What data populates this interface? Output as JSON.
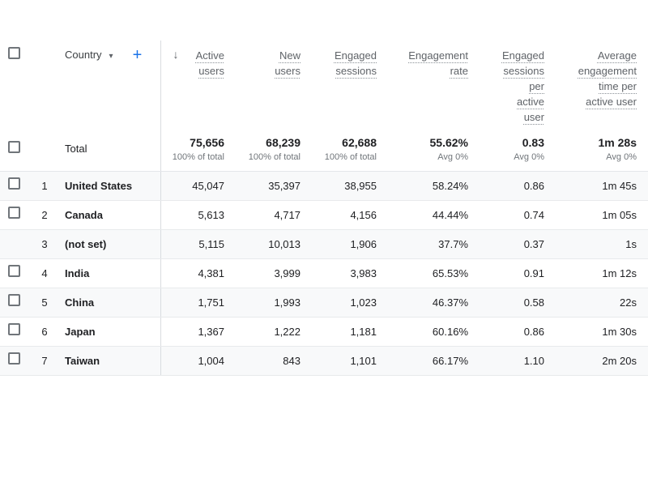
{
  "header": {
    "dimension": {
      "label": "Country"
    },
    "columns": [
      {
        "label": "Active users"
      },
      {
        "label": "New users"
      },
      {
        "label": "Engaged sessions"
      },
      {
        "label": "Engagement rate"
      },
      {
        "label": "Engaged sessions per active user"
      },
      {
        "label": "Average engagement time per active user"
      }
    ]
  },
  "icons": {
    "sort_descending": "↓",
    "dropdown_caret": "▾",
    "add": "+"
  },
  "totals": {
    "label": "Total",
    "metrics": [
      {
        "value": "75,656",
        "sub": "100% of total"
      },
      {
        "value": "68,239",
        "sub": "100% of total"
      },
      {
        "value": "62,688",
        "sub": "100% of total"
      },
      {
        "value": "55.62%",
        "sub": "Avg 0%"
      },
      {
        "value": "0.83",
        "sub": "Avg 0%"
      },
      {
        "value": "1m 28s",
        "sub": "Avg 0%"
      }
    ]
  },
  "rows": [
    {
      "rank": "1",
      "country": "United States",
      "has_checkbox": true,
      "values": [
        "45,047",
        "35,397",
        "38,955",
        "58.24%",
        "0.86",
        "1m 45s"
      ]
    },
    {
      "rank": "2",
      "country": "Canada",
      "has_checkbox": true,
      "values": [
        "5,613",
        "4,717",
        "4,156",
        "44.44%",
        "0.74",
        "1m 05s"
      ]
    },
    {
      "rank": "3",
      "country": "(not set)",
      "has_checkbox": false,
      "values": [
        "5,115",
        "10,013",
        "1,906",
        "37.7%",
        "0.37",
        "1s"
      ]
    },
    {
      "rank": "4",
      "country": "India",
      "has_checkbox": true,
      "values": [
        "4,381",
        "3,999",
        "3,983",
        "65.53%",
        "0.91",
        "1m 12s"
      ]
    },
    {
      "rank": "5",
      "country": "China",
      "has_checkbox": true,
      "values": [
        "1,751",
        "1,993",
        "1,023",
        "46.37%",
        "0.58",
        "22s"
      ]
    },
    {
      "rank": "6",
      "country": "Japan",
      "has_checkbox": true,
      "values": [
        "1,367",
        "1,222",
        "1,181",
        "60.16%",
        "0.86",
        "1m 30s"
      ]
    },
    {
      "rank": "7",
      "country": "Taiwan",
      "has_checkbox": true,
      "values": [
        "1,004",
        "843",
        "1,101",
        "66.17%",
        "1.10",
        "2m 20s"
      ]
    }
  ],
  "colors": {
    "accent_blue": "#1a73e8",
    "header_text": "#5f6368",
    "body_text": "#202124",
    "stripe_bg": "#f8f9fa",
    "row_border": "#e8eaec",
    "column_divider": "#d9dce0"
  }
}
